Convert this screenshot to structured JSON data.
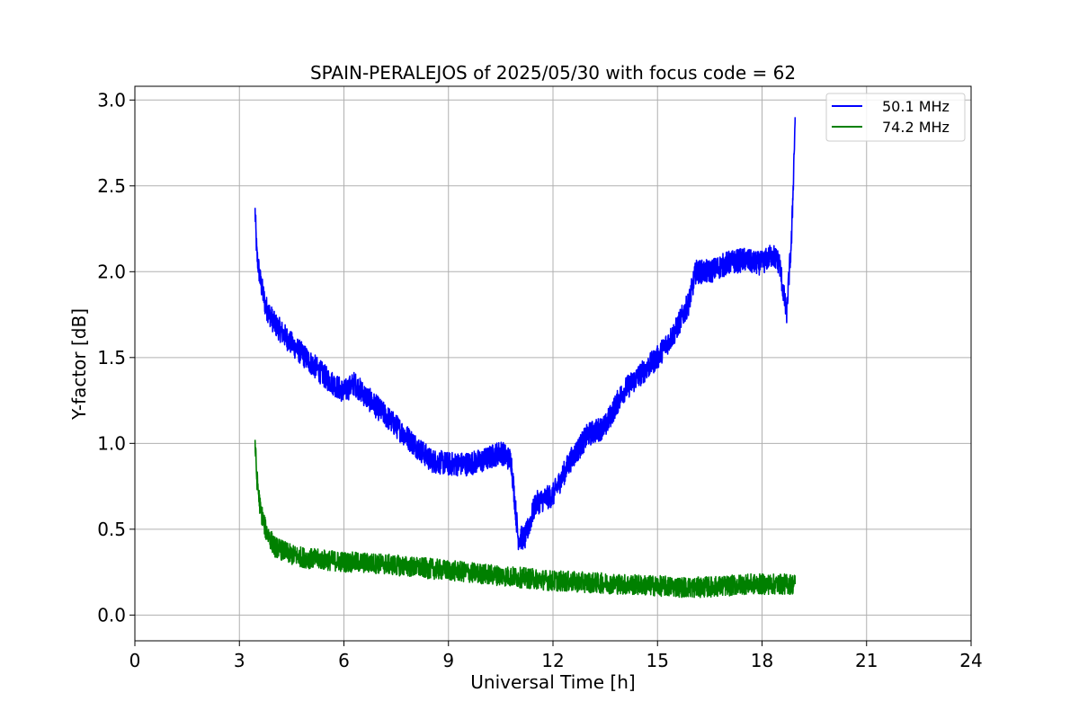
{
  "chart_data": {
    "type": "line",
    "title": "SPAIN-PERALEJOS of 2025/05/30 with focus code = 62",
    "xlabel": "Universal Time [h]",
    "ylabel": "Y-factor [dB]",
    "xlim": [
      0,
      24
    ],
    "ylim": [
      -0.15,
      3.08
    ],
    "xticks": [
      0,
      3,
      6,
      9,
      12,
      15,
      18,
      21,
      24
    ],
    "yticks": [
      0.0,
      0.5,
      1.0,
      1.5,
      2.0,
      2.5,
      3.0
    ],
    "xtick_labels": [
      "0",
      "3",
      "6",
      "9",
      "12",
      "15",
      "18",
      "21",
      "24"
    ],
    "ytick_labels": [
      "0.0",
      "0.5",
      "1.0",
      "1.5",
      "2.0",
      "2.5",
      "3.0"
    ],
    "grid": true,
    "legend_position": "top-right",
    "series": [
      {
        "name": "50.1 MHz",
        "color": "#0000ff",
        "x": [
          3.45,
          3.5,
          3.6,
          3.75,
          4.0,
          4.5,
          5.0,
          5.5,
          6.0,
          6.3,
          6.6,
          7.0,
          7.5,
          8.0,
          8.5,
          9.0,
          9.5,
          10.0,
          10.5,
          10.8,
          11.0,
          11.2,
          11.5,
          12.0,
          12.5,
          13.0,
          13.5,
          14.0,
          14.5,
          15.0,
          15.5,
          15.9,
          16.1,
          16.5,
          17.0,
          17.5,
          17.8,
          18.0,
          18.3,
          18.5,
          18.7,
          18.85,
          18.95
        ],
        "y": [
          2.35,
          2.1,
          1.95,
          1.8,
          1.7,
          1.58,
          1.48,
          1.38,
          1.3,
          1.35,
          1.28,
          1.2,
          1.1,
          1.0,
          0.9,
          0.88,
          0.88,
          0.9,
          0.95,
          0.9,
          0.45,
          0.45,
          0.65,
          0.7,
          0.9,
          1.05,
          1.1,
          1.3,
          1.4,
          1.5,
          1.65,
          1.82,
          2.0,
          2.0,
          2.05,
          2.07,
          2.05,
          2.05,
          2.1,
          2.05,
          1.75,
          2.2,
          2.9
        ],
        "noise": 0.07
      },
      {
        "name": "74.2 MHz",
        "color": "#008000",
        "x": [
          3.45,
          3.5,
          3.6,
          3.75,
          4.0,
          4.5,
          5.0,
          6.0,
          7.0,
          8.0,
          9.0,
          10.0,
          11.0,
          12.0,
          13.0,
          14.0,
          15.0,
          16.0,
          17.0,
          17.5,
          18.0,
          18.5,
          18.95
        ],
        "y": [
          1.0,
          0.8,
          0.62,
          0.5,
          0.4,
          0.35,
          0.33,
          0.31,
          0.3,
          0.28,
          0.26,
          0.24,
          0.22,
          0.2,
          0.19,
          0.18,
          0.17,
          0.16,
          0.17,
          0.18,
          0.18,
          0.18,
          0.18
        ],
        "noise": 0.06
      }
    ]
  }
}
